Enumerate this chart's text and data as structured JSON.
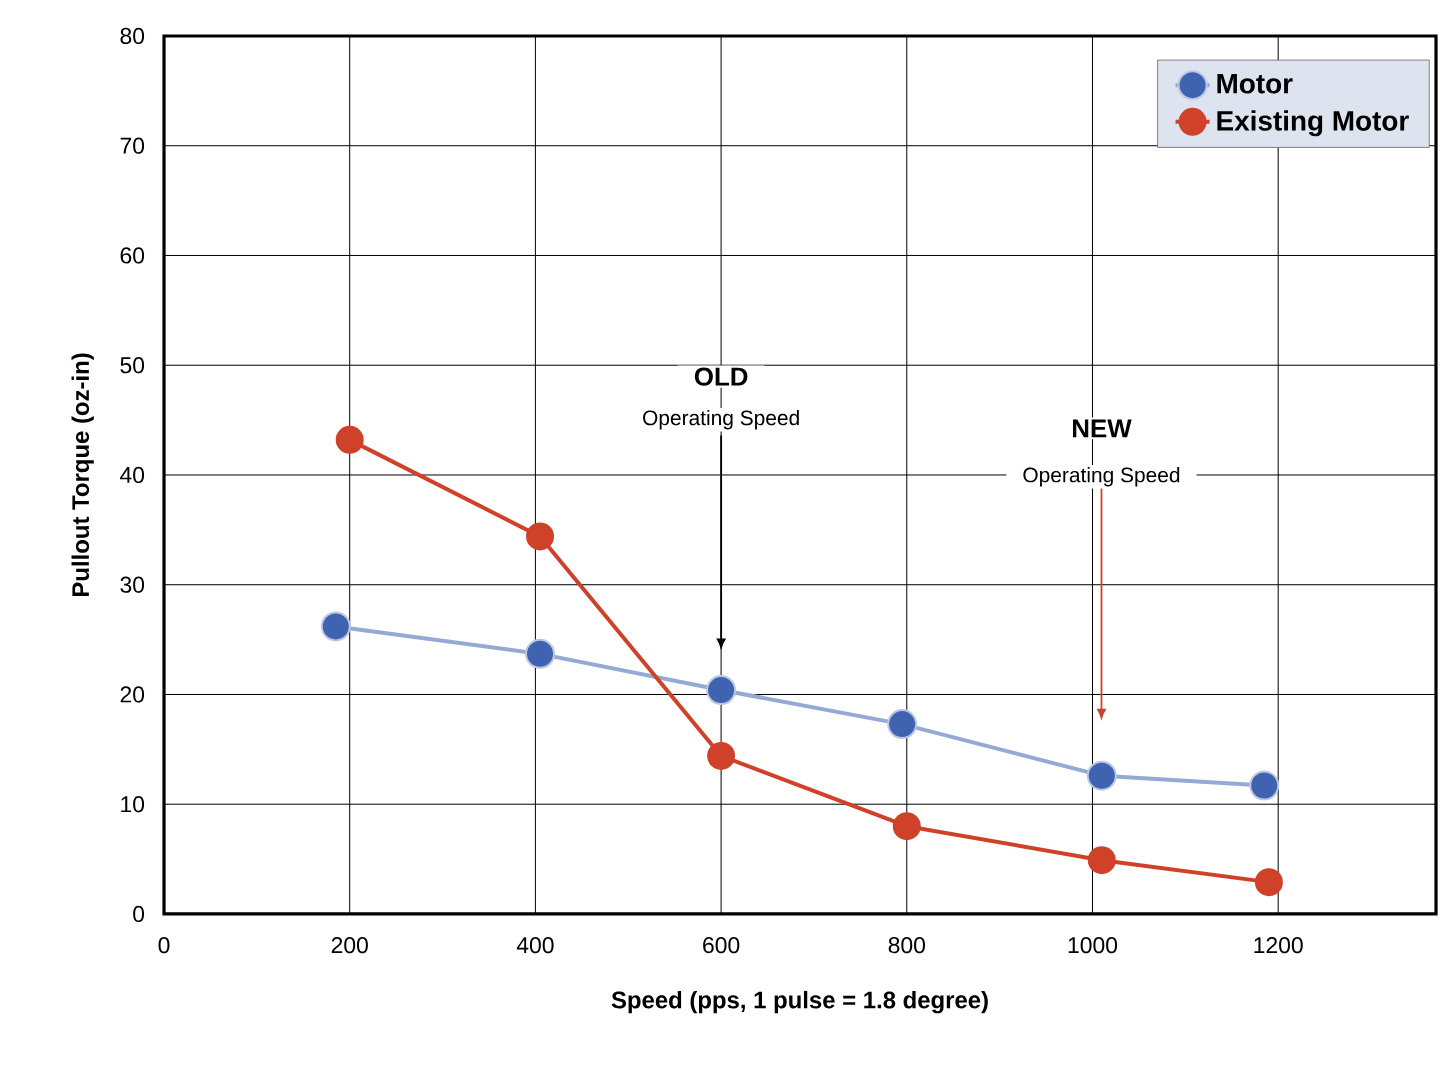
{
  "chart_data": {
    "type": "line",
    "xlabel": "Speed (pps, 1 pulse = 1.8 degree)",
    "ylabel": "Pullout Torque (oz-in)",
    "xlim": [
      0,
      1370
    ],
    "xticks": [
      0,
      200,
      400,
      600,
      800,
      1000,
      1200
    ],
    "ylim": [
      0,
      80
    ],
    "yticks": [
      0,
      10,
      20,
      30,
      40,
      50,
      60,
      70,
      80
    ],
    "grid": true,
    "legend": "top right",
    "series": [
      {
        "name": "Motor",
        "color": "#3f63b0",
        "marker": "circle",
        "x": [
          185,
          405,
          600,
          795,
          1010,
          1185
        ],
        "values": [
          26.2,
          23.7,
          20.4,
          17.3,
          12.6,
          11.7
        ]
      },
      {
        "name": "Existing Motor",
        "color": "#d0412a",
        "marker": "circle",
        "x": [
          200,
          405,
          600,
          800,
          1010,
          1190
        ],
        "values": [
          43.2,
          34.4,
          14.4,
          8.0,
          4.9,
          2.9
        ]
      }
    ],
    "annotations": [
      "**OLD**",
      "Operating Speed",
      "**NEW**",
      "Operating Speed"
    ]
  }
}
